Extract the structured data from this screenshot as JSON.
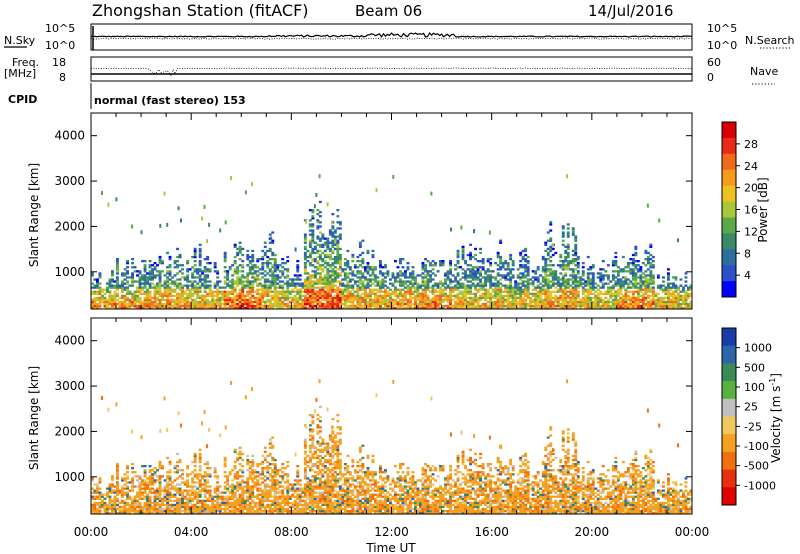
{
  "header": {
    "title": "Zhongshan Station (fitACF)",
    "beam": "Beam 06",
    "date": "14/Jul/2016"
  },
  "top_panels": {
    "nsky_label": "N.Sky",
    "nsky_ticks": [
      "10^5",
      "10^0"
    ],
    "nsearch_label": "N.Search",
    "nsearch_ticks": [
      "10^5",
      "10^0"
    ],
    "freq_label": "Freq.",
    "freq_unit": "[MHz]",
    "freq_ticks": [
      "18",
      "8"
    ],
    "nave_label": "Nave",
    "nave_ticks": [
      "60",
      "0"
    ],
    "cpid_label": "CPID",
    "cpid_text": "normal (fast stereo) 153"
  },
  "chart_data": [
    {
      "type": "heatmap",
      "name": "power",
      "xlabel": "",
      "ylabel": "Slant Range [km]",
      "y_ticks": [
        "4000",
        "3000",
        "2000",
        "1000"
      ],
      "ylim": [
        180,
        4500
      ],
      "xlim_hours": [
        0,
        24
      ],
      "colorbar_label": "Power [dB]",
      "colorbar_ticks": [
        "28",
        "24",
        "20",
        "16",
        "12",
        "8",
        "4"
      ],
      "colorbar_colors": [
        "#0000ff",
        "#2b50c8",
        "#2a6f9e",
        "#3a8a6a",
        "#5aa84a",
        "#a8c83a",
        "#f0c020",
        "#f79a20",
        "#ef6a1a",
        "#e82a1a",
        "#d80000"
      ]
    },
    {
      "type": "heatmap",
      "name": "velocity",
      "xlabel": "Time UT",
      "ylabel": "Slant Range [km]",
      "y_ticks": [
        "4000",
        "3000",
        "2000",
        "1000"
      ],
      "ylim": [
        180,
        4500
      ],
      "xlim_hours": [
        0,
        24
      ],
      "x_ticks": [
        "00:00",
        "04:00",
        "08:00",
        "12:00",
        "16:00",
        "20:00",
        "00:00"
      ],
      "colorbar_label": "Velocity [m s^-1]",
      "colorbar_ticks": [
        "1000",
        "500",
        "100",
        "25",
        "-25",
        "-100",
        "-500",
        "-1000"
      ],
      "colorbar_colors": [
        "#1a3ca8",
        "#2a66a8",
        "#3a8a5a",
        "#5ab040",
        "#c0c0c0",
        "#f0c860",
        "#f4a020",
        "#f07010",
        "#e83010",
        "#e00000"
      ]
    }
  ]
}
